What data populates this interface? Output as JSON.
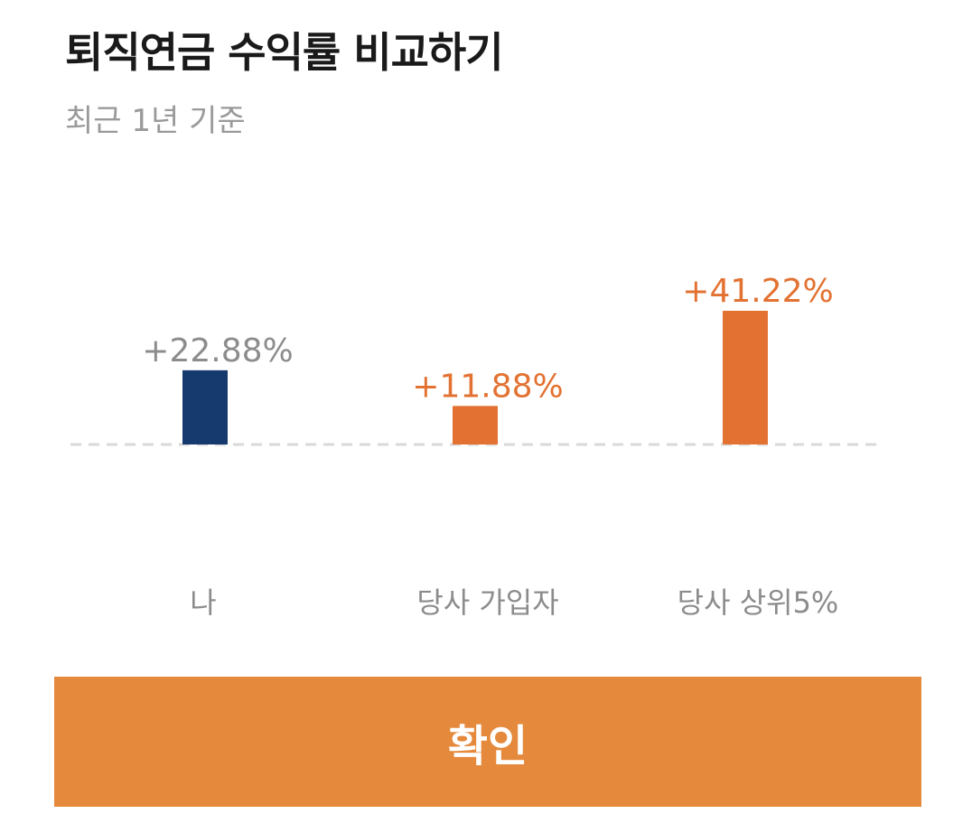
{
  "header": {
    "title": "퇴직연금 수익률 비교하기",
    "subtitle": "최근 1년 기준"
  },
  "chart_data": {
    "type": "bar",
    "categories": [
      "나",
      "당사 가입자",
      "당사 상위5%"
    ],
    "values": [
      22.88,
      11.88,
      41.22
    ],
    "value_labels": [
      "+22.88%",
      "+11.88%",
      "+41.22%"
    ],
    "bar_colors": [
      "#173a6e",
      "#e37232",
      "#e37232"
    ],
    "label_colors": [
      "#8c8c8c",
      "#e37232",
      "#e37232"
    ],
    "category_label_color": "#8c8c8c",
    "baseline_color": "#d9d9d9",
    "baseline": "dashed",
    "ylim": [
      0,
      41.22
    ],
    "grid": false,
    "legend": "none"
  },
  "footer": {
    "confirm_label": "확인",
    "button_color": "#e5893c"
  }
}
